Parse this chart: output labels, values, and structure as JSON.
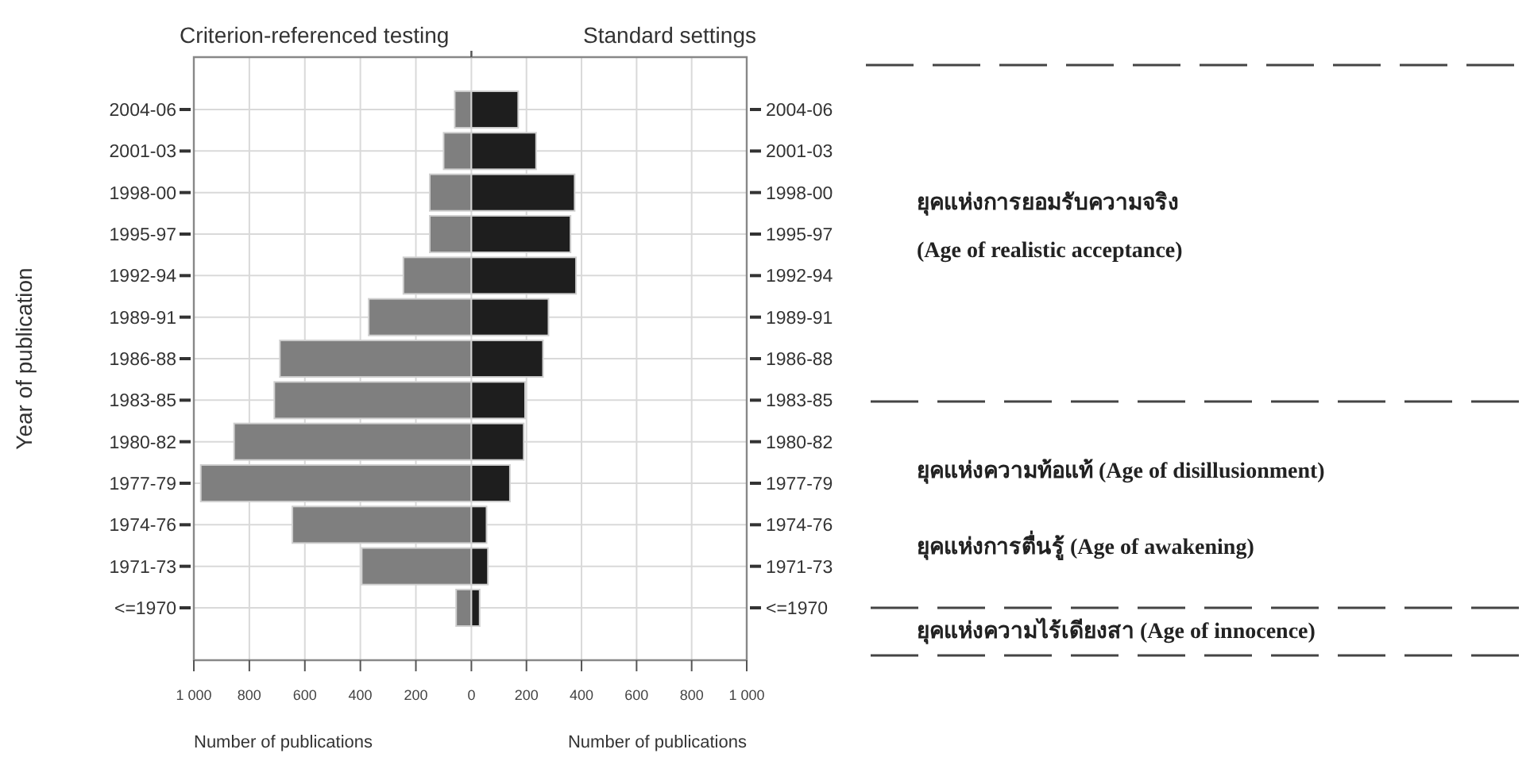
{
  "chart_data": [
    {
      "type": "bar",
      "orientation": "horizontal",
      "title": "Criterion-referenced testing",
      "xlabel": "Number of publications",
      "ylabel": "Year of publication",
      "grid": true,
      "color": "#7f7f7f",
      "categories": [
        "2004-06",
        "2001-03",
        "1998-00",
        "1995-97",
        "1992-94",
        "1989-91",
        "1986-88",
        "1983-85",
        "1980-82",
        "1977-79",
        "1974-76",
        "1971-73",
        "<=1970"
      ],
      "values": [
        60,
        100,
        150,
        150,
        245,
        370,
        690,
        710,
        855,
        975,
        645,
        395,
        55
      ],
      "xlim": [
        1000,
        0
      ],
      "xticks": [
        {
          "value": 1000,
          "label": "1 000"
        },
        800,
        600,
        400,
        200,
        0
      ]
    },
    {
      "type": "bar",
      "orientation": "horizontal",
      "title": "Standard settings",
      "xlabel": "Number of publications",
      "grid": true,
      "color": "#1e1e1e",
      "categories": [
        "2004-06",
        "2001-03",
        "1998-00",
        "1995-97",
        "1992-94",
        "1989-91",
        "1986-88",
        "1983-85",
        "1980-82",
        "1977-79",
        "1974-76",
        "1971-73",
        "<=1970"
      ],
      "values": [
        170,
        235,
        375,
        360,
        380,
        280,
        260,
        195,
        190,
        140,
        55,
        60,
        30
      ],
      "xlim": [
        0,
        1000
      ],
      "xticks": [
        200,
        400,
        600,
        800,
        {
          "value": 1000,
          "label": "1 000"
        }
      ],
      "annotations": [
        "ยุคแห่งการยอมรับความจริง",
        "(Age of realistic acceptance)",
        "ยุคแห่งความท้อแท้ (Age of disillusionment)",
        "ยุคแห่งการตื่นรู้ (Age of awakening)",
        "ยุคแห่งความไร้เดียงสา (Age of innocence)"
      ]
    }
  ]
}
